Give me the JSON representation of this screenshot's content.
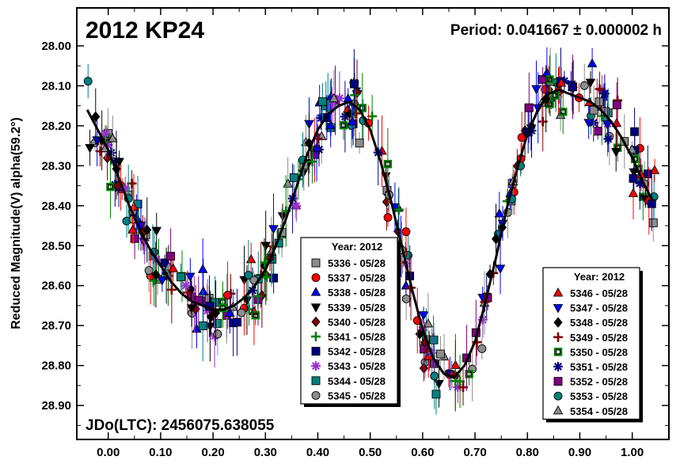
{
  "chart_data": {
    "type": "scatter",
    "title": "2012 KP24",
    "period_label": "Period: 0.041667 ± 0.000002 h",
    "epoch_label": "JDo(LTC): 2456075.638055",
    "xlabel": "",
    "ylabel": "Reduced Magnitude(V) alpha(59.2°)",
    "xlim": [
      -0.06,
      1.07
    ],
    "ylim": [
      28.985,
      27.905
    ],
    "y_reversed": true,
    "x_ticks": [
      "0.00",
      "0.10",
      "0.20",
      "0.30",
      "0.40",
      "0.50",
      "0.60",
      "0.70",
      "0.80",
      "0.90",
      "1.00"
    ],
    "y_ticks": [
      "28.00",
      "28.10",
      "28.20",
      "28.30",
      "28.40",
      "28.50",
      "28.60",
      "28.70",
      "28.80",
      "28.90"
    ],
    "grid": false,
    "legend_left": {
      "title": "Year: 2012",
      "placement": "bottom-center",
      "entries": [
        {
          "label": "5336 - 05/28",
          "marker": "square",
          "color": "#8c8c8c"
        },
        {
          "label": "5337 - 05/28",
          "marker": "circle",
          "color": "#ff0000"
        },
        {
          "label": "5338 - 05/28",
          "marker": "triangle-up",
          "color": "#0000ff"
        },
        {
          "label": "5339 - 05/28",
          "marker": "triangle-down",
          "color": "#000000"
        },
        {
          "label": "5340 - 05/28",
          "marker": "diamond",
          "color": "#800000"
        },
        {
          "label": "5341 - 05/28",
          "marker": "plus",
          "color": "#008000"
        },
        {
          "label": "5342 - 05/28",
          "marker": "square",
          "color": "#000080"
        },
        {
          "label": "5343 - 05/28",
          "marker": "asterisk",
          "color": "#9932cc"
        },
        {
          "label": "5344 - 05/28",
          "marker": "square",
          "color": "#008080"
        },
        {
          "label": "5345 - 05/28",
          "marker": "circle",
          "color": "#8c8c8c"
        }
      ]
    },
    "legend_right": {
      "title": "Year: 2012",
      "placement": "bottom-right",
      "entries": [
        {
          "label": "5346 - 05/28",
          "marker": "triangle-up",
          "color": "#ff0000"
        },
        {
          "label": "5347 - 05/28",
          "marker": "triangle-down",
          "color": "#0000ff"
        },
        {
          "label": "5348 - 05/28",
          "marker": "diamond",
          "color": "#000000"
        },
        {
          "label": "5349 - 05/28",
          "marker": "plus",
          "color": "#800000"
        },
        {
          "label": "5350 - 05/28",
          "marker": "square-open",
          "color": "#008000"
        },
        {
          "label": "5351 - 05/28",
          "marker": "asterisk",
          "color": "#000080"
        },
        {
          "label": "5352 - 05/28",
          "marker": "square",
          "color": "#800080"
        },
        {
          "label": "5353 - 05/28",
          "marker": "circle",
          "color": "#008080"
        },
        {
          "label": "5354 - 05/28",
          "marker": "triangle-up",
          "color": "#8c8c8c"
        }
      ]
    },
    "fit_curve": {
      "x": [
        -0.04,
        -0.02,
        0.0,
        0.02,
        0.04,
        0.06,
        0.08,
        0.1,
        0.12,
        0.14,
        0.16,
        0.18,
        0.2,
        0.22,
        0.24,
        0.26,
        0.28,
        0.3,
        0.32,
        0.34,
        0.36,
        0.38,
        0.4,
        0.42,
        0.44,
        0.46,
        0.48,
        0.5,
        0.52,
        0.54,
        0.56,
        0.58,
        0.6,
        0.62,
        0.64,
        0.66,
        0.68,
        0.7,
        0.72,
        0.74,
        0.76,
        0.78,
        0.8,
        0.82,
        0.84,
        0.86,
        0.88,
        0.9,
        0.92,
        0.94,
        0.96,
        0.98,
        1.0,
        1.02,
        1.04
      ],
      "y": [
        28.16,
        28.21,
        28.26,
        28.33,
        28.4,
        28.46,
        28.51,
        28.55,
        28.59,
        28.62,
        28.64,
        28.65,
        28.66,
        28.66,
        28.65,
        28.63,
        28.6,
        28.56,
        28.5,
        28.43,
        28.35,
        28.27,
        28.21,
        28.17,
        28.15,
        28.14,
        28.16,
        28.21,
        28.29,
        28.39,
        28.5,
        28.61,
        28.71,
        28.78,
        28.82,
        28.83,
        28.8,
        28.74,
        28.64,
        28.53,
        28.41,
        28.31,
        28.22,
        28.16,
        28.12,
        28.11,
        28.12,
        28.13,
        28.14,
        28.16,
        28.19,
        28.23,
        28.28,
        28.34,
        28.39
      ]
    }
  }
}
